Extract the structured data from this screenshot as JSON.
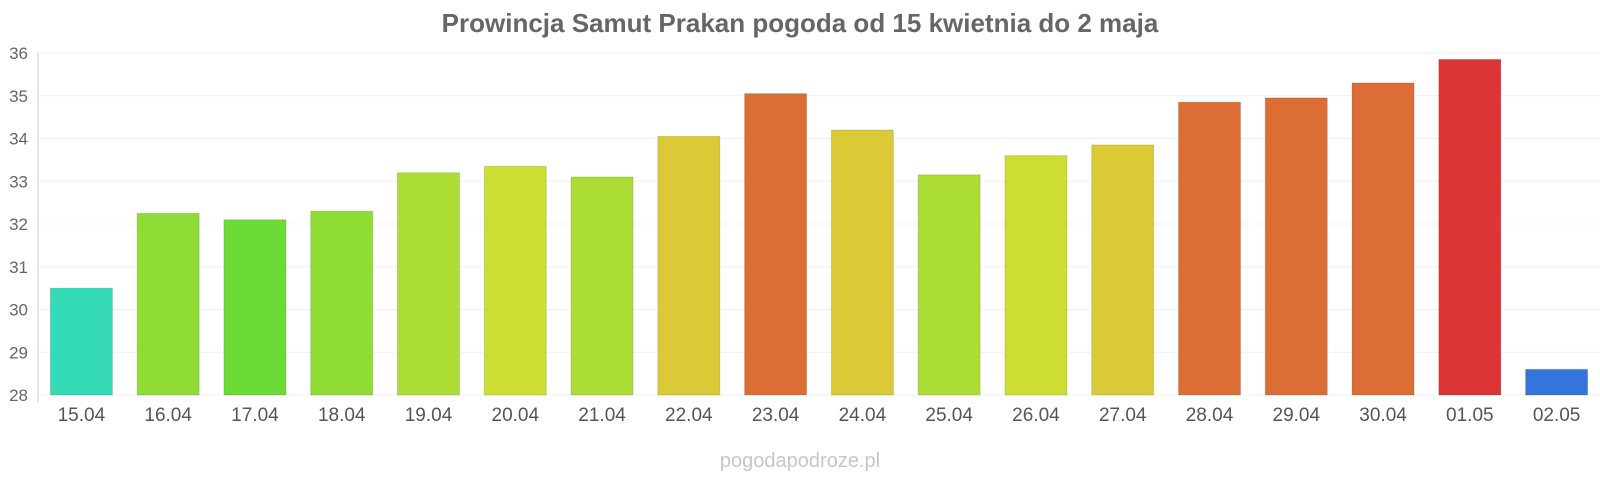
{
  "chart_data": {
    "type": "bar",
    "title": "Prowincja Samut Prakan pogoda od 15 kwietnia do 2 maja",
    "xlabel": "",
    "ylabel": "",
    "ylim": [
      28,
      36
    ],
    "yticks": [
      28,
      29,
      30,
      31,
      32,
      33,
      34,
      35,
      36
    ],
    "grid": true,
    "categories": [
      "15.04",
      "16.04",
      "17.04",
      "18.04",
      "19.04",
      "20.04",
      "21.04",
      "22.04",
      "23.04",
      "24.04",
      "25.04",
      "26.04",
      "27.04",
      "28.04",
      "29.04",
      "30.04",
      "01.05",
      "02.05"
    ],
    "values": [
      30.5,
      32.25,
      32.1,
      32.3,
      33.2,
      33.35,
      33.1,
      34.05,
      35.05,
      34.2,
      33.15,
      33.6,
      33.85,
      34.85,
      34.95,
      35.3,
      35.85,
      28.6
    ],
    "colors": [
      "#35dab6",
      "#8fdc35",
      "#6ddb35",
      "#8fdc35",
      "#acdd35",
      "#ccdd33",
      "#acdd35",
      "#dbca35",
      "#dc6e35",
      "#dbca35",
      "#acdd35",
      "#ccdd33",
      "#dbca35",
      "#dc6e35",
      "#dc6e35",
      "#dc6e35",
      "#dc3535",
      "#3575db"
    ]
  },
  "watermark": "pogodapodroze.pl"
}
